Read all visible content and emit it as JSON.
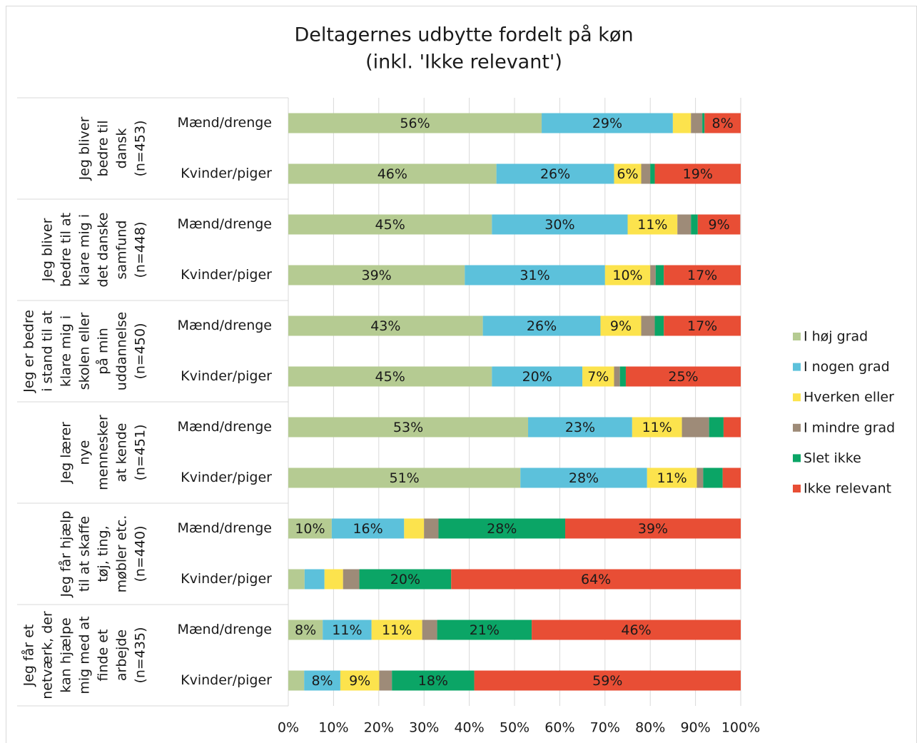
{
  "chart_data": {
    "type": "stacked-bar-horizontal",
    "title": [
      "Deltagernes udbytte fordelt på køn",
      "(inkl. 'Ikke relevant')"
    ],
    "groups": [
      {
        "lines": [
          "Jeg bliver",
          "bedre til",
          "dansk",
          "(n=453)"
        ]
      },
      {
        "lines": [
          "Jeg bliver",
          "bedre til at",
          "klare mig i",
          "det danske",
          "samfund",
          "(n=448)"
        ]
      },
      {
        "lines": [
          "Jeg er bedre",
          "i stand til at",
          "klare mig i",
          "skolen eller",
          "på min",
          "uddannelse",
          "(n=450)"
        ]
      },
      {
        "lines": [
          "Jeg lærer",
          "nye",
          "mennesker",
          "at kende",
          "(n=451)"
        ]
      },
      {
        "lines": [
          "Jeg får hjælp",
          "til at skaffe",
          "tøj, ting,",
          "møbler etc.",
          "(n=440)"
        ]
      },
      {
        "lines": [
          "Jeg får et",
          "netværk, der",
          "kan hjælpe",
          "mig med at",
          "finde et",
          "arbejde",
          "(n=435)"
        ]
      }
    ],
    "categories": [
      "Mænd/drenge",
      "Kvinder/piger",
      "Mænd/drenge",
      "Kvinder/piger",
      "Mænd/drenge",
      "Kvinder/piger",
      "Mænd/drenge",
      "Kvinder/piger",
      "Mænd/drenge",
      "Kvinder/piger",
      "Mænd/drenge",
      "Kvinder/piger"
    ],
    "series": [
      {
        "name": "I høj grad",
        "color": "#b5cb92",
        "values": [
          56,
          46,
          45,
          39,
          43,
          45,
          53,
          51.3,
          9.6,
          3.6,
          7.6,
          3.5
        ],
        "value_labels": [
          "56%",
          "46%",
          "45%",
          "39%",
          "43%",
          "45%",
          "53%",
          "51%",
          "10%",
          null,
          "8%",
          null
        ]
      },
      {
        "name": "I nogen grad",
        "color": "#5cc1db",
        "values": [
          29,
          26,
          30,
          31,
          26,
          20,
          23,
          28,
          16,
          4.4,
          10.8,
          8
        ],
        "value_labels": [
          "29%",
          "26%",
          "30%",
          "31%",
          "26%",
          "20%",
          "23%",
          "28%",
          "16%",
          null,
          "11%",
          "8%"
        ]
      },
      {
        "name": "Hverken eller",
        "color": "#fce34d",
        "values": [
          4,
          6,
          11,
          10,
          9,
          7,
          11,
          11,
          4.4,
          4.1,
          11.2,
          8.6
        ],
        "value_labels": [
          null,
          "6%",
          "11%",
          "10%",
          "9%",
          "7%",
          "11%",
          "11%",
          null,
          null,
          "11%",
          "9%"
        ]
      },
      {
        "name": "I mindre grad",
        "color": "#9e8b78",
        "values": [
          2.5,
          2,
          3,
          1.2,
          3,
          1.3,
          6,
          1.4,
          3.2,
          3.6,
          3.3,
          2.8
        ],
        "value_labels": [
          null,
          null,
          null,
          null,
          null,
          null,
          null,
          null,
          null,
          null,
          null,
          null
        ]
      },
      {
        "name": "Slet ikke",
        "color": "#0ba566",
        "values": [
          0.5,
          1,
          1.5,
          1.8,
          2,
          1.3,
          3.2,
          4.3,
          28,
          20.3,
          20.9,
          18.2
        ],
        "value_labels": [
          null,
          null,
          null,
          null,
          null,
          null,
          null,
          null,
          "28%",
          "20%",
          "21%",
          "18%"
        ]
      },
      {
        "name": "Ikke relevant",
        "color": "#e84e35",
        "values": [
          8,
          19,
          9.4,
          17,
          17,
          25.4,
          3.8,
          4,
          38.8,
          64,
          46.2,
          58.9
        ],
        "value_labels": [
          "8%",
          "19%",
          "9%",
          "17%",
          "17%",
          "25%",
          null,
          null,
          "39%",
          "64%",
          "46%",
          "59%"
        ]
      }
    ],
    "xlim": [
      0,
      100
    ],
    "xticks": [
      {
        "value": 0,
        "label": "0%"
      },
      {
        "value": 10,
        "label": "10%"
      },
      {
        "value": 20,
        "label": "20%"
      },
      {
        "value": 30,
        "label": "30%"
      },
      {
        "value": 40,
        "label": "40%"
      },
      {
        "value": 50,
        "label": "50%"
      },
      {
        "value": 60,
        "label": "60%"
      },
      {
        "value": 70,
        "label": "70%"
      },
      {
        "value": 80,
        "label": "80%"
      },
      {
        "value": 90,
        "label": "90%"
      },
      {
        "value": 100,
        "label": "100%"
      }
    ],
    "grid": true,
    "legend": "right"
  }
}
